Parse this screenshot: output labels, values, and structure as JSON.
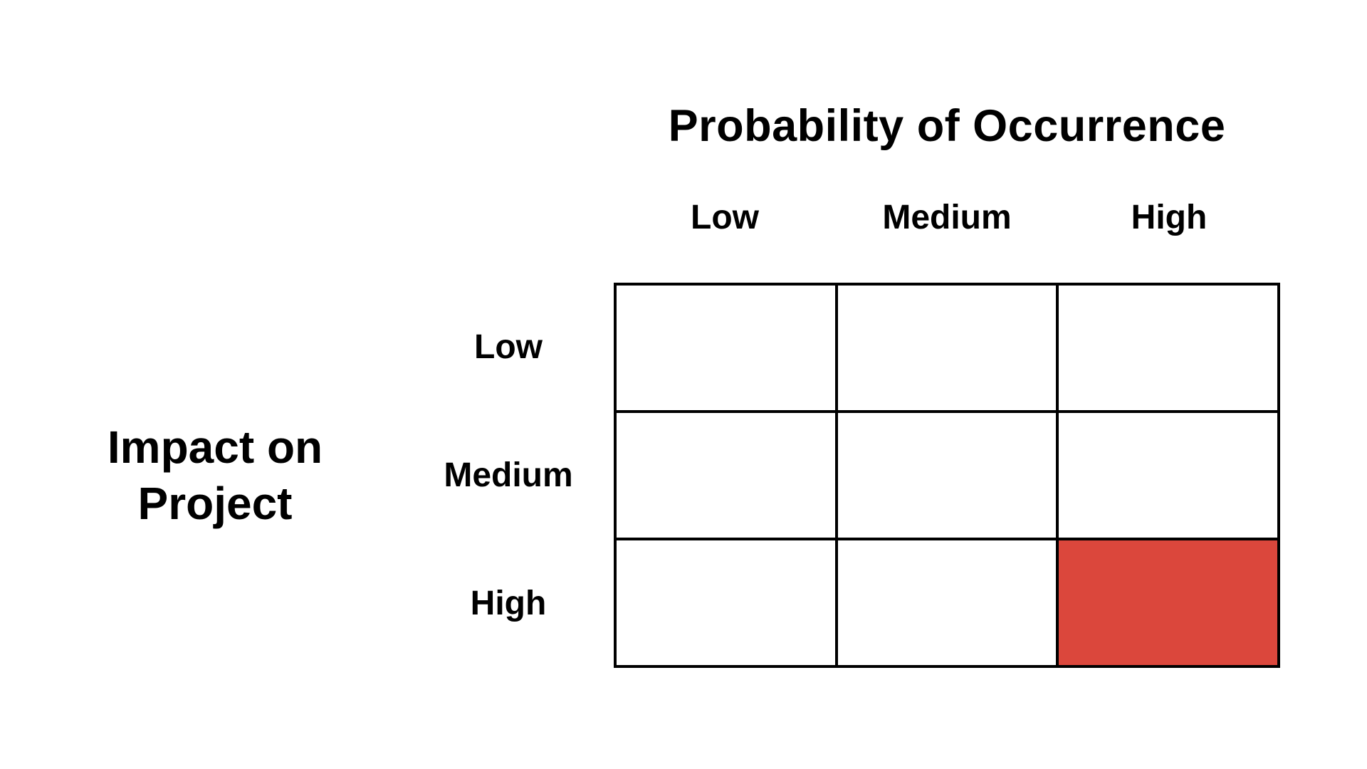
{
  "matrix": {
    "column_axis_title": "Probability of Occurrence",
    "row_axis_title_lines": [
      "Impact on",
      "Project"
    ],
    "column_headers": [
      "Low",
      "Medium",
      "High"
    ],
    "row_headers": [
      "Low",
      "Medium",
      "High"
    ],
    "rows": 3,
    "columns": 3,
    "cells": [
      [
        "empty",
        "empty",
        "empty"
      ],
      [
        "empty",
        "empty",
        "empty"
      ],
      [
        "empty",
        "empty",
        "highlighted"
      ]
    ],
    "highlighted_cell": {
      "row_label": "High",
      "column_label": "High",
      "row_index": 2,
      "col_index": 2
    }
  },
  "colors": {
    "background": "#FFFFFF",
    "grid_lines": "#000000",
    "text": "#000000",
    "highlight": "#DB473C"
  }
}
